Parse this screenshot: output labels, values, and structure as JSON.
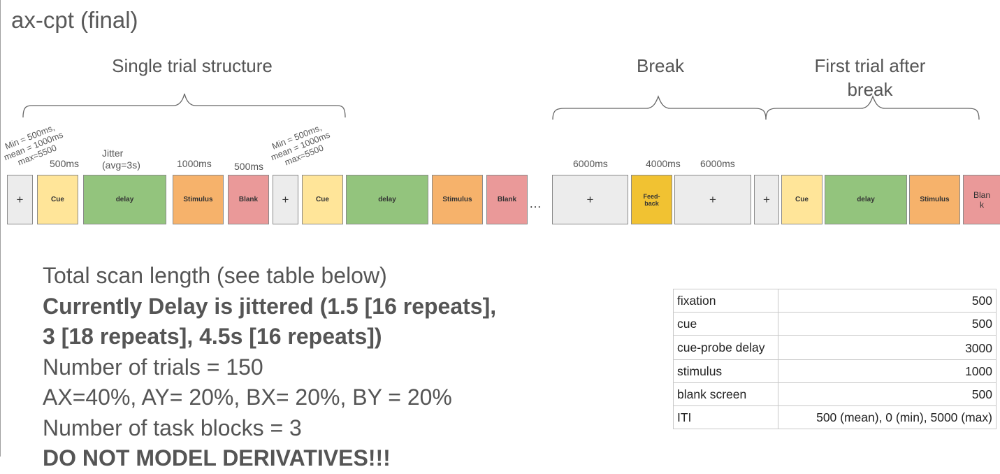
{
  "title": "ax-cpt (final)",
  "sections": {
    "single_trial": "Single trial structure",
    "break": "Break",
    "first_trial_line1": "First trial after",
    "first_trial_line2": "break"
  },
  "durations": {
    "fix_lines": [
      "Min = 500ms,",
      "mean = 1000ms",
      "max=5500"
    ],
    "cue": "500ms",
    "jitter_line1": "Jitter",
    "jitter_line2": "(avg=3s)",
    "stimulus": "1000ms",
    "blank": "500ms",
    "break_fix1": "6000ms",
    "feedback": "4000ms",
    "break_fix2": "6000ms"
  },
  "boxes": {
    "fixation": "+",
    "cue": "Cue",
    "delay": "delay",
    "stimulus": "Stimulus",
    "blank": "Blank",
    "feedback_line1": "Feed-",
    "feedback_line2": "back",
    "blank_wrapped_line1": "Blan",
    "blank_wrapped_line2": "k",
    "ellipsis": "…"
  },
  "notes": {
    "line1": "Total scan length (see table below)",
    "line2": "Currently Delay is jittered (1.5 [16 repeats],",
    "line3": "3 [18 repeats], 4.5s [16 repeats])",
    "line4": "Number of trials = 150",
    "line5": "AX=40%, AY= 20%, BX= 20%, BY = 20%",
    "line6": "Number of task blocks = 3",
    "line7": "DO NOT MODEL DERIVATIVES!!!"
  },
  "timing_table": [
    {
      "event": "fixation",
      "value": "500"
    },
    {
      "event_line1": "cue",
      "value": "500"
    },
    {
      "event": "cue-probe delay",
      "value": "3000"
    },
    {
      "event": "stimulus",
      "value": "1000"
    },
    {
      "event": "blank screen",
      "value": "500"
    },
    {
      "event": "ITI",
      "value": "500 (mean), 0 (min), 5000 (max)"
    }
  ],
  "colors": {
    "fixation": "#ececec",
    "cue": "#ffe599",
    "delay": "#93c47d",
    "stimulus": "#f6b26b",
    "blank": "#ea9999",
    "feedback": "#f1c232"
  }
}
